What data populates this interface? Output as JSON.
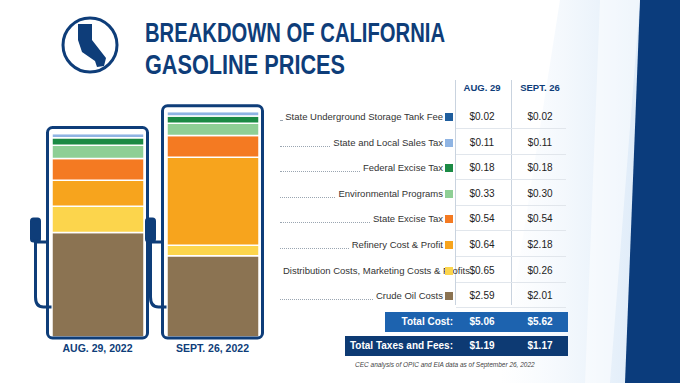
{
  "chart_data": {
    "type": "bar",
    "title": "BREAKDOWN OF CALIFORNIA GASOLINE PRICES",
    "categories": [
      "AUG. 29, 2022",
      "SEPT. 26, 2022"
    ],
    "columns": [
      "AUG. 29",
      "SEPT. 26"
    ],
    "stacked": true,
    "tick_labels": "x",
    "ylim": [
      0,
      5.62
    ],
    "series": [
      {
        "name": "State Underground Storage Tank Fee",
        "color": "#1f5e9e",
        "values": [
          0.02,
          0.02
        ],
        "value_labels": [
          "$0.02",
          "$0.02"
        ]
      },
      {
        "name": "State and Local Sales Tax",
        "color": "#8fb4e3",
        "values": [
          0.11,
          0.11
        ],
        "value_labels": [
          "$0.11",
          "$0.11"
        ]
      },
      {
        "name": "Federal Excise Tax",
        "color": "#1b8a44",
        "values": [
          0.18,
          0.18
        ],
        "value_labels": [
          "$0.18",
          "$0.18"
        ]
      },
      {
        "name": "Environmental Programs",
        "color": "#8ecf95",
        "values": [
          0.33,
          0.3
        ],
        "value_labels": [
          "$0.33",
          "$0.30"
        ]
      },
      {
        "name": "State Excise Tax",
        "color": "#f47a22",
        "values": [
          0.54,
          0.54
        ],
        "value_labels": [
          "$0.54",
          "$0.54"
        ]
      },
      {
        "name": "Refinery Cost & Profit",
        "color": "#f7a41d",
        "values": [
          0.64,
          2.18
        ],
        "value_labels": [
          "$0.64",
          "$2.18"
        ]
      },
      {
        "name": "Distribution Costs, Marketing Costs & Profits",
        "color": "#fcd54c",
        "values": [
          0.65,
          0.26
        ],
        "value_labels": [
          "$0.65",
          "$0.26"
        ]
      },
      {
        "name": "Crude Oil Costs",
        "color": "#8b7352",
        "values": [
          2.59,
          2.01
        ],
        "value_labels": [
          "$2.59",
          "$2.01"
        ]
      }
    ],
    "totals": [
      {
        "name": "Total Cost:",
        "values": [
          5.06,
          5.62
        ],
        "value_labels": [
          "$5.06",
          "$5.62"
        ]
      },
      {
        "name": "Total Taxes and Fees:",
        "values": [
          1.19,
          1.17
        ],
        "value_labels": [
          "$1.19",
          "$1.17"
        ]
      }
    ],
    "source": "CEC analysis of OPIC and EIA data as of September 26, 2022"
  }
}
